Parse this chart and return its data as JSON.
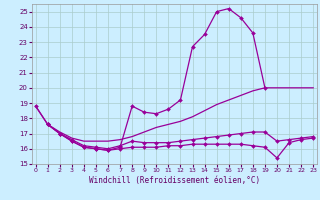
{
  "xlabel": "Windchill (Refroidissement éolien,°C)",
  "background_color": "#cceeff",
  "line_color": "#990099",
  "grid_color": "#aacccc",
  "xlim": [
    -0.3,
    23.3
  ],
  "ylim": [
    15,
    25.5
  ],
  "yticks": [
    15,
    16,
    17,
    18,
    19,
    20,
    21,
    22,
    23,
    24,
    25
  ],
  "xticks": [
    0,
    1,
    2,
    3,
    4,
    5,
    6,
    7,
    8,
    9,
    10,
    11,
    12,
    13,
    14,
    15,
    16,
    17,
    18,
    19,
    20,
    21,
    22,
    23
  ],
  "line1_x": [
    0,
    1,
    2,
    3,
    4,
    5,
    6,
    7,
    8,
    9,
    10,
    11,
    12,
    13,
    14,
    15,
    16,
    17,
    18,
    19
  ],
  "line1_y": [
    18.8,
    17.6,
    17.0,
    16.5,
    16.1,
    16.0,
    15.9,
    16.1,
    18.8,
    18.4,
    18.3,
    18.6,
    19.2,
    22.7,
    23.5,
    25.0,
    25.2,
    24.6,
    23.6,
    20.0
  ],
  "line2_x": [
    0,
    1,
    2,
    3,
    4,
    5,
    6,
    7,
    8,
    9,
    10,
    11,
    12,
    13,
    14,
    15,
    16,
    17,
    18,
    19,
    20,
    21,
    22,
    23
  ],
  "line2_y": [
    18.8,
    17.6,
    17.1,
    16.7,
    16.5,
    16.5,
    16.5,
    16.6,
    16.8,
    17.1,
    17.4,
    17.6,
    17.8,
    18.1,
    18.5,
    18.9,
    19.2,
    19.5,
    19.8,
    20.0,
    20.0,
    20.0,
    20.0,
    20.0
  ],
  "line3_x": [
    1,
    2,
    3,
    4,
    5,
    6,
    7,
    8,
    9,
    10,
    11,
    12,
    13,
    14,
    15,
    16,
    17,
    18,
    19,
    20,
    21,
    22,
    23
  ],
  "line3_y": [
    17.6,
    17.0,
    16.6,
    16.2,
    16.1,
    16.0,
    16.2,
    16.5,
    16.4,
    16.4,
    16.4,
    16.5,
    16.6,
    16.7,
    16.8,
    16.9,
    17.0,
    17.1,
    17.1,
    16.5,
    16.6,
    16.7,
    16.8
  ],
  "line4_x": [
    1,
    2,
    3,
    4,
    5,
    6,
    7,
    8,
    9,
    10,
    11,
    12,
    13,
    14,
    15,
    16,
    17,
    18,
    19,
    20,
    21,
    22,
    23
  ],
  "line4_y": [
    17.6,
    17.0,
    16.5,
    16.1,
    16.0,
    15.9,
    16.0,
    16.1,
    16.1,
    16.1,
    16.2,
    16.2,
    16.3,
    16.3,
    16.3,
    16.3,
    16.3,
    16.2,
    16.1,
    15.4,
    16.4,
    16.6,
    16.7
  ]
}
